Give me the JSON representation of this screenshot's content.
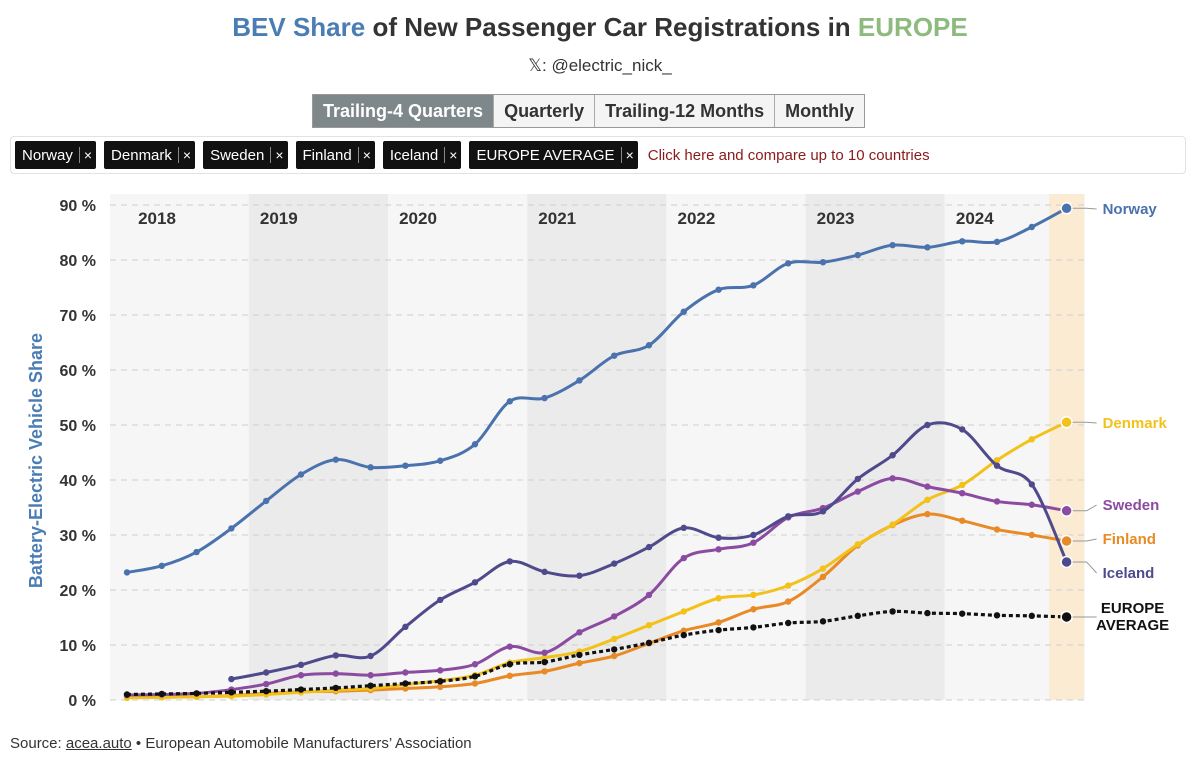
{
  "header": {
    "title_part1": "BEV Share",
    "title_part2": " of New Passenger Car Registrations in ",
    "title_part3": "EUROPE",
    "subtitle": "𝕏: @electric_nick_"
  },
  "tabs": [
    {
      "label": "Trailing-4 Quarters",
      "active": true
    },
    {
      "label": "Quarterly",
      "active": false
    },
    {
      "label": "Trailing-12 Months",
      "active": false
    },
    {
      "label": "Monthly",
      "active": false
    }
  ],
  "filters": {
    "chips": [
      "Norway",
      "Denmark",
      "Sweden",
      "Finland",
      "Iceland",
      "EUROPE AVERAGE"
    ],
    "remove_glyph": "×",
    "compare_text": "Click here and compare up to 10 countries"
  },
  "footer": {
    "source_label": "Source: ",
    "source_link": "acea.auto",
    "source_rest": " • European Automobile Manufacturers’ Association"
  },
  "colors": {
    "norway": "#4a72ad",
    "denmark": "#f2c21b",
    "sweden": "#8b4ba0",
    "finland": "#e88a26",
    "iceland": "#4f4a8c",
    "europe": "#111111",
    "axis_title": "#4a7db3"
  },
  "chart_data": {
    "type": "line",
    "ylabel": "Battery-Electric Vehicle Share",
    "y_unit_suffix": " %",
    "ylim": [
      0,
      90
    ],
    "yticks": [
      0,
      10,
      20,
      30,
      40,
      50,
      60,
      70,
      80,
      90
    ],
    "x_start": 2018.0,
    "x_step": 0.25,
    "years": [
      "2018",
      "2019",
      "2020",
      "2021",
      "2022",
      "2023",
      "2024"
    ],
    "series": [
      {
        "name": "Norway",
        "key": "norway",
        "label": "Norway",
        "start_index": 0,
        "values": [
          23.2,
          24.4,
          26.9,
          31.2,
          36.2,
          41.0,
          43.7,
          42.3,
          42.6,
          43.5,
          46.5,
          54.3,
          54.9,
          58.1,
          62.6,
          64.5,
          70.6,
          74.6,
          75.4,
          79.4,
          79.6,
          80.9,
          82.7,
          82.3,
          83.4,
          83.3,
          86.0,
          89.4
        ]
      },
      {
        "name": "Denmark",
        "key": "denmark",
        "label": "Denmark",
        "start_index": 0,
        "values": [
          0.4,
          0.5,
          0.6,
          0.7,
          1.0,
          1.4,
          1.8,
          2.1,
          2.8,
          3.5,
          4.5,
          6.8,
          7.7,
          8.8,
          11.1,
          13.6,
          16.1,
          18.5,
          19.1,
          20.8,
          23.9,
          28.3,
          31.9,
          36.4,
          39.1,
          43.6,
          47.4,
          50.5
        ]
      },
      {
        "name": "Sweden",
        "key": "sweden",
        "label": "Sweden",
        "start_index": 0,
        "values": [
          0.9,
          1.0,
          1.2,
          1.9,
          2.9,
          4.5,
          4.8,
          4.5,
          5.0,
          5.4,
          6.5,
          9.7,
          8.6,
          12.3,
          15.2,
          19.1,
          25.8,
          27.4,
          28.6,
          33.2,
          34.9,
          37.9,
          40.3,
          38.8,
          37.6,
          36.1,
          35.5,
          34.4
        ]
      },
      {
        "name": "Finland",
        "key": "finland",
        "label": "Finland",
        "start_index": 0,
        "values": [
          0.5,
          0.5,
          0.6,
          0.8,
          1.2,
          1.5,
          1.6,
          1.8,
          2.1,
          2.4,
          3.0,
          4.4,
          5.2,
          6.7,
          8.0,
          10.3,
          12.6,
          14.1,
          16.5,
          17.9,
          22.4,
          28.1,
          31.8,
          33.8,
          32.6,
          31.0,
          30.0,
          28.9
        ]
      },
      {
        "name": "Iceland",
        "key": "iceland",
        "label": "Iceland",
        "start_index": 3,
        "values": [
          3.8,
          5.0,
          6.4,
          8.1,
          8.0,
          13.3,
          18.2,
          21.4,
          25.2,
          23.3,
          22.6,
          24.8,
          27.8,
          31.3,
          29.5,
          30.0,
          33.4,
          34.3,
          40.2,
          44.5,
          50.0,
          49.2,
          42.6,
          39.2,
          25.1
        ]
      },
      {
        "name": "EUROPE AVERAGE",
        "key": "europe",
        "label": "EUROPE AVERAGE",
        "start_index": 0,
        "dashed": true,
        "values": [
          1.0,
          1.1,
          1.2,
          1.4,
          1.6,
          1.9,
          2.2,
          2.6,
          3.0,
          3.4,
          4.3,
          6.5,
          6.9,
          8.2,
          9.2,
          10.4,
          11.8,
          12.7,
          13.2,
          14.0,
          14.3,
          15.3,
          16.1,
          15.8,
          15.7,
          15.4,
          15.3,
          15.1
        ]
      }
    ]
  }
}
